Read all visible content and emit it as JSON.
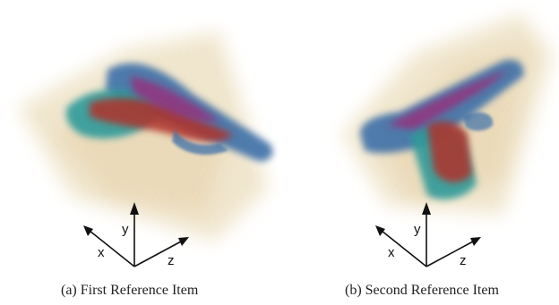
{
  "figures": [
    {
      "caption": "(a) First Reference Item",
      "axes": {
        "x": "x",
        "y": "y",
        "z": "z"
      }
    },
    {
      "caption": "(b) Second Reference Item",
      "axes": {
        "x": "x",
        "y": "y",
        "z": "z"
      }
    }
  ],
  "colors": {
    "haze": "#efe3c7",
    "body_blue": "#3d6fa8",
    "body_teal": "#2d9a9a",
    "core_red": "#b0322c",
    "core_magenta": "#9a2f7a",
    "axis": "#111111"
  }
}
